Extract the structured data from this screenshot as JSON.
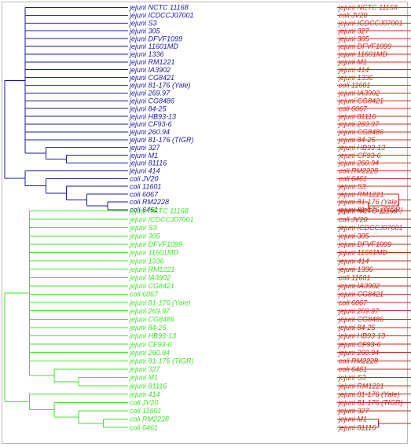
{
  "trees": [
    {
      "id": "top-left",
      "color": "#1a1aa6",
      "leaves": [
        "jejuni NCTC 11168",
        "jejuni ICDCCJ07001",
        "jejuni S3",
        "jejuni 305",
        "jejuni DFVF1099",
        "jejuni 11601MD",
        "jejuni 1336",
        "jejuni RM1221",
        "jejuni IA3902",
        "jejuni CG8421",
        "jejuni 81-176 (Yale)",
        "jejuni 269.97",
        "jejuni CG8486",
        "jejuni 84-25",
        "jejuni HB93-13",
        "jejuni CF93-6",
        "jejuni 260.94",
        "jejuni 81-176 (TIGR)",
        "jejuni 327",
        "jejuni M1",
        "jejuni 81116",
        "jejuni 414",
        "coli JV20",
        "coli 11601",
        "coli 6067",
        "coli RM2228",
        "coli 6461"
      ]
    },
    {
      "id": "top-right",
      "color": "#d42a1a",
      "leaves": [
        "jejuni NCTC 11168",
        "coli JV20",
        "jejuni ICDCCJ07001",
        "jejuni 327",
        "jejuni 305",
        "jejuni DFVF1099",
        "jejuni 11601MD",
        "jejuni M1",
        "jejuni 414",
        "jejuni 1336",
        "coli 11601",
        "jejuni IA3902",
        "jejuni CG8421",
        "coli 6067",
        "jejuni 81116",
        "jejuni 269.97",
        "jejuni CG8486",
        "jejuni 84-25",
        "jejuni HB93-13",
        "jejuni CF93-6",
        "jejuni 260.94",
        "coli RM2228",
        "coli 6461",
        "jejuni S3",
        "jejuni RM1221",
        "jejuni 81-176 (Yale)",
        "jejuni 81-176 (TIGR)"
      ]
    },
    {
      "id": "bottom-left",
      "color": "#3ee62a",
      "leaves": [
        "jejuni NCTC 11168",
        "jejuni ICDCCJ07001",
        "jejuni S3",
        "jejuni 305",
        "jejuni DFVF1099",
        "jejuni 11601MD",
        "jejuni 1336",
        "jejuni RM1221",
        "jejuni IA3902",
        "jejuni CG8421",
        "coli 6067",
        "jejuni 81-176 (Yale)",
        "jejuni 269.97",
        "jejuni CG8486",
        "jejuni 84-25",
        "jejuni HB93-13",
        "jejuni CF93-6",
        "jejuni 260.94",
        "jejuni 81-176 (TIGR)",
        "jejuni 327",
        "jejuni M1",
        "jejuni 81116",
        "jejuni 414",
        "coli JV20",
        "coli 11601",
        "coli RM2228",
        "coli 6461"
      ]
    },
    {
      "id": "bottom-right",
      "color": "#c8241a",
      "leaves": [
        "jejuni NCTC 11168",
        "coli JV20",
        "jejuni ICDCCJ07001",
        "jejuni 305",
        "jejuni DFVF1099",
        "jejuni 11601MD",
        "jejuni 414",
        "jejuni 1336",
        "coli 11601",
        "jejuni IA3902",
        "jejuni CG8421",
        "coli 6067",
        "jejuni 269.97",
        "jejuni CG8486",
        "jejuni 84-25",
        "jejuni HB93-13",
        "jejuni CF93-6",
        "jejuni 260.94",
        "coli RM2228",
        "coli 6461",
        "jejuni S3",
        "jejuni RM1221",
        "jejuni 81-176 (Yale)",
        "jejuni 81-176 (TIGR)",
        "jejuni 327",
        "jejuni M1",
        "jejuni 81116"
      ]
    }
  ]
}
